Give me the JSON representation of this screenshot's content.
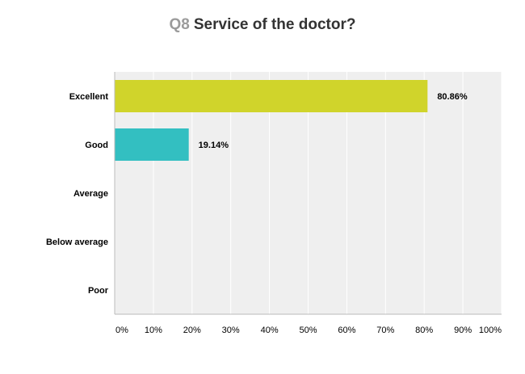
{
  "title": {
    "question_number": "Q8",
    "question_text": "Service of the doctor?"
  },
  "colors": {
    "plot_background": "#efefef",
    "gridline": "#ffffff",
    "axis": "#bbbbbb",
    "bar_excellent": "#d0d42b",
    "bar_good": "#33bfc1"
  },
  "chart_data": {
    "type": "bar",
    "orientation": "horizontal",
    "title": "Q8 Service of the doctor?",
    "categories": [
      "Excellent",
      "Good",
      "Average",
      "Below average",
      "Poor"
    ],
    "values": [
      80.86,
      19.14,
      0,
      0,
      0
    ],
    "value_labels": [
      "80.86%",
      "19.14%",
      "",
      "",
      ""
    ],
    "bar_colors": [
      "#d0d42b",
      "#33bfc1",
      "#d0d42b",
      "#d0d42b",
      "#d0d42b"
    ],
    "xlim": [
      0,
      100
    ],
    "xticks": [
      0,
      10,
      20,
      30,
      40,
      50,
      60,
      70,
      80,
      90,
      100
    ],
    "xtick_labels": [
      "0%",
      "10%",
      "20%",
      "30%",
      "40%",
      "50%",
      "60%",
      "70%",
      "80%",
      "90%",
      "100%"
    ],
    "xlabel": "",
    "ylabel": "",
    "grid": true,
    "legend": "none"
  }
}
